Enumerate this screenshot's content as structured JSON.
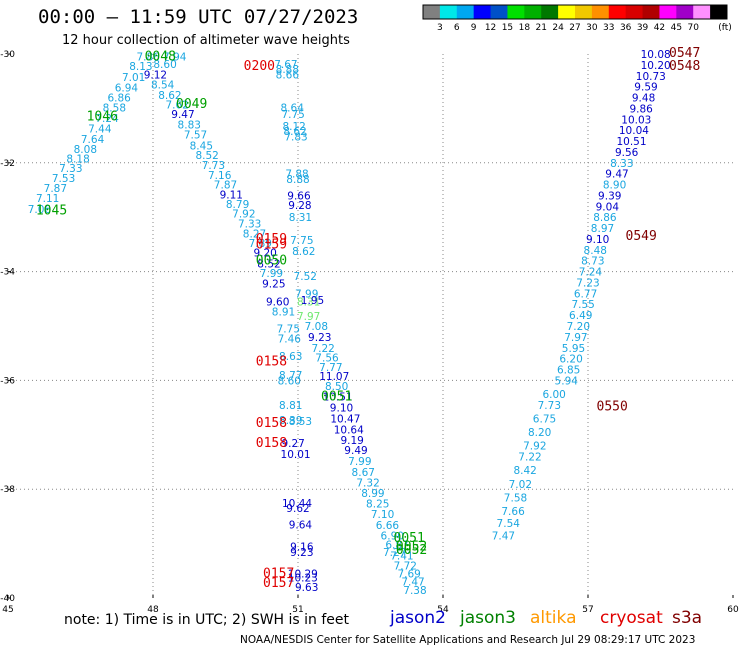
{
  "header": {
    "title": "00:00 – 11:59 UTC 07/27/2023",
    "subtitle": "12 hour collection of altimeter wave heights"
  },
  "colorbar": {
    "ticks": [
      "3",
      "6",
      "9",
      "12",
      "15",
      "18",
      "21",
      "24",
      "27",
      "30",
      "33",
      "36",
      "39",
      "42",
      "45",
      "70"
    ],
    "unit": "(ft)",
    "colors": [
      "#808080",
      "#00e8e8",
      "#00a8f0",
      "#0000ff",
      "#0050c8",
      "#00e000",
      "#00b000",
      "#007800",
      "#ffff00",
      "#f0c800",
      "#ff9000",
      "#ff0000",
      "#d80000",
      "#b00000",
      "#ff00ff",
      "#a000c8",
      "#ff90ff",
      "#000000"
    ]
  },
  "footer": {
    "note": "note:  1) Time is in UTC;  2) SWH is in feet",
    "credit": "NOAA/NESDIS Center for Satellite Applications and Research    Jul 29 08:29:17 UTC 2023"
  },
  "satellites": [
    {
      "name": "jason2",
      "color": "#0000c8"
    },
    {
      "name": "jason3",
      "color": "#008000"
    },
    {
      "name": "altika",
      "color": "#ff9900"
    },
    {
      "name": "cryosat",
      "color": "#e00000"
    },
    {
      "name": "s3a",
      "color": "#800000"
    }
  ],
  "chart_data": {
    "type": "scatter",
    "xlim": [
      45,
      60
    ],
    "ylim": [
      -40,
      -30
    ],
    "xticks": [
      45,
      48,
      51,
      54,
      57,
      60
    ],
    "yticks": [
      -30,
      -32,
      -34,
      -36,
      -38,
      -40
    ],
    "xtick_labels": [
      "45",
      "48",
      "51",
      "54",
      "57",
      "60"
    ],
    "ytick_labels": [
      "-30",
      "-32",
      "-34",
      "-36",
      "-38",
      "-40"
    ],
    "grid": true,
    "grid_style": "dotted",
    "palette": {
      "a": "#1aa6e0",
      "b": "#0000c8",
      "c": "#00a000",
      "d": "#e00000",
      "e": "#800000",
      "f": "#70e870"
    },
    "labels": [
      [
        "7.86",
        47.9,
        -30.05,
        "a"
      ],
      [
        "8.13",
        47.75,
        -30.22,
        "a"
      ],
      [
        "7.01",
        47.6,
        -30.42,
        "a"
      ],
      [
        "6.94",
        47.45,
        -30.62,
        "a"
      ],
      [
        "6.86",
        47.3,
        -30.8,
        "a"
      ],
      [
        "8.58",
        47.2,
        -30.98,
        "a"
      ],
      [
        "7.24",
        47.05,
        -31.18,
        "a"
      ],
      [
        "7.44",
        46.9,
        -31.37,
        "a"
      ],
      [
        "7.64",
        46.75,
        -31.56,
        "a"
      ],
      [
        "8.08",
        46.6,
        -31.75,
        "a"
      ],
      [
        "8.18",
        46.45,
        -31.92,
        "a"
      ],
      [
        "7.33",
        46.3,
        -32.1,
        "a"
      ],
      [
        "7.53",
        46.15,
        -32.28,
        "a"
      ],
      [
        "7.87",
        45.98,
        -32.46,
        "a"
      ],
      [
        "7.11",
        45.82,
        -32.65,
        "a"
      ],
      [
        "7.06",
        45.65,
        -32.85,
        "a"
      ],
      [
        "7.94",
        48.45,
        -30.05,
        "a"
      ],
      [
        "8.60",
        48.25,
        -30.18,
        "a"
      ],
      [
        "9.12",
        48.05,
        -30.38,
        "b"
      ],
      [
        "8.54",
        48.2,
        -30.56,
        "a"
      ],
      [
        "8.62",
        48.35,
        -30.75,
        "a"
      ],
      [
        "7.62",
        48.5,
        -30.93,
        "a"
      ],
      [
        "9.47",
        48.62,
        -31.1,
        "b"
      ],
      [
        "8.83",
        48.75,
        -31.3,
        "a"
      ],
      [
        "7.57",
        48.88,
        -31.48,
        "a"
      ],
      [
        "8.45",
        49.0,
        -31.68,
        "a"
      ],
      [
        "8.52",
        49.12,
        -31.86,
        "a"
      ],
      [
        "7.73",
        49.25,
        -32.04,
        "a"
      ],
      [
        "7.16",
        49.38,
        -32.22,
        "a"
      ],
      [
        "7.87",
        49.5,
        -32.4,
        "a"
      ],
      [
        "9.11",
        49.62,
        -32.58,
        "b"
      ],
      [
        "8.79",
        49.75,
        -32.76,
        "a"
      ],
      [
        "7.92",
        49.88,
        -32.93,
        "a"
      ],
      [
        "7.33",
        50.0,
        -33.12,
        "a"
      ],
      [
        "8.27",
        50.1,
        -33.3,
        "a"
      ],
      [
        "7.89",
        50.22,
        -33.47,
        "a"
      ],
      [
        "9.20",
        50.32,
        -33.65,
        "b"
      ],
      [
        "8.52",
        50.4,
        -33.85,
        "b"
      ],
      [
        "7.99",
        50.45,
        -34.03,
        "a"
      ],
      [
        "9.25",
        50.5,
        -34.22,
        "b"
      ],
      [
        "9.60",
        50.58,
        -34.55,
        "b"
      ],
      [
        "8.91",
        50.7,
        -34.73,
        "a"
      ],
      [
        "7.75",
        50.8,
        -35.05,
        "a"
      ],
      [
        "7.46",
        50.82,
        -35.23,
        "a"
      ],
      [
        "8.63",
        50.85,
        -35.55,
        "a"
      ],
      [
        "8.77",
        50.85,
        -35.9,
        "a"
      ],
      [
        "8.60",
        50.82,
        -36.0,
        "a"
      ],
      [
        "8.81",
        50.85,
        -36.45,
        "a"
      ],
      [
        "8.39",
        50.85,
        -36.73,
        "a"
      ],
      [
        "8.53",
        51.05,
        -36.75,
        "a"
      ],
      [
        "9.27",
        50.9,
        -37.15,
        "b"
      ],
      [
        "10.01",
        50.95,
        -37.35,
        "b"
      ],
      [
        "7.67",
        50.75,
        -30.18,
        "a"
      ],
      [
        "8.88",
        50.78,
        -30.28,
        "a"
      ],
      [
        "8.66",
        50.78,
        -30.38,
        "a"
      ],
      [
        "8.64",
        50.88,
        -30.98,
        "a"
      ],
      [
        "7.75",
        50.9,
        -31.1,
        "a"
      ],
      [
        "8.12",
        50.92,
        -31.32,
        "a"
      ],
      [
        "8.62",
        50.94,
        -31.42,
        "a"
      ],
      [
        "7.83",
        50.96,
        -31.52,
        "a"
      ],
      [
        "7.88",
        50.98,
        -32.2,
        "a"
      ],
      [
        "8.88",
        51.0,
        -32.3,
        "a"
      ],
      [
        "9.66",
        51.02,
        -32.6,
        "b"
      ],
      [
        "9.28",
        51.04,
        -32.78,
        "b"
      ],
      [
        "8.31",
        51.05,
        -33.0,
        "a"
      ],
      [
        "7.75",
        51.08,
        -33.42,
        "a"
      ],
      [
        "8.62",
        51.12,
        -33.62,
        "a"
      ],
      [
        "7.52",
        51.15,
        -34.08,
        "a"
      ],
      [
        "7.99",
        51.18,
        -34.4,
        "a"
      ],
      [
        "8.31",
        51.22,
        -34.55,
        "f"
      ],
      [
        "7.97",
        51.22,
        -34.82,
        "f"
      ],
      [
        "1.95",
        51.3,
        -34.52,
        "b"
      ],
      [
        "7.08",
        51.38,
        -35.0,
        "a"
      ],
      [
        "9.23",
        51.45,
        -35.2,
        "b"
      ],
      [
        "7.22",
        51.52,
        -35.4,
        "a"
      ],
      [
        "7.56",
        51.6,
        -35.58,
        "a"
      ],
      [
        "7.77",
        51.68,
        -35.75,
        "a"
      ],
      [
        "11.07",
        51.75,
        -35.92,
        "b"
      ],
      [
        "8.50",
        51.8,
        -36.1,
        "a"
      ],
      [
        "10.51",
        51.82,
        -36.3,
        "b"
      ],
      [
        "9.10",
        51.9,
        -36.5,
        "b"
      ],
      [
        "10.47",
        51.98,
        -36.7,
        "b"
      ],
      [
        "10.64",
        52.05,
        -36.9,
        "b"
      ],
      [
        "9.19",
        52.12,
        -37.1,
        "b"
      ],
      [
        "9.49",
        52.2,
        -37.28,
        "b"
      ],
      [
        "7.99",
        52.28,
        -37.48,
        "a"
      ],
      [
        "8.67",
        52.35,
        -37.68,
        "a"
      ],
      [
        "7.32",
        52.45,
        -37.88,
        "a"
      ],
      [
        "8.99",
        52.55,
        -38.07,
        "a"
      ],
      [
        "8.25",
        52.65,
        -38.26,
        "a"
      ],
      [
        "7.10",
        52.75,
        -38.46,
        "a"
      ],
      [
        "6.66",
        52.85,
        -38.66,
        "a"
      ],
      [
        "6.90",
        52.95,
        -38.85,
        "a"
      ],
      [
        "6.87",
        53.05,
        -39.02,
        "a"
      ],
      [
        "7.41",
        53.15,
        -39.22,
        "a"
      ],
      [
        "7.72",
        53.22,
        -39.4,
        "a"
      ],
      [
        "7.69",
        53.3,
        -39.55,
        "a"
      ],
      [
        "7.47",
        53.38,
        -39.7,
        "a"
      ],
      [
        "7.38",
        53.42,
        -39.85,
        "a"
      ],
      [
        "7.27",
        53.0,
        -39.15,
        "a"
      ],
      [
        "10.44",
        50.98,
        -38.25,
        "b"
      ],
      [
        "9.62",
        51.0,
        -38.35,
        "b"
      ],
      [
        "9.64",
        51.05,
        -38.65,
        "b"
      ],
      [
        "9.16",
        51.08,
        -39.05,
        "b"
      ],
      [
        "9.23",
        51.08,
        -39.15,
        "b"
      ],
      [
        "10.29",
        51.1,
        -39.55,
        "b"
      ],
      [
        "10.23",
        51.1,
        -39.62,
        "b"
      ],
      [
        "9.63",
        51.18,
        -39.8,
        "b"
      ],
      [
        "10.08",
        58.4,
        -30.0,
        "b"
      ],
      [
        "10.20",
        58.4,
        -30.2,
        "b"
      ],
      [
        "10.73",
        58.3,
        -30.4,
        "b"
      ],
      [
        "9.59",
        58.2,
        -30.6,
        "b"
      ],
      [
        "9.48",
        58.15,
        -30.8,
        "b"
      ],
      [
        "9.86",
        58.1,
        -31.0,
        "b"
      ],
      [
        "10.03",
        58.0,
        -31.2,
        "b"
      ],
      [
        "10.04",
        57.95,
        -31.4,
        "b"
      ],
      [
        "10.51",
        57.9,
        -31.6,
        "b"
      ],
      [
        "9.56",
        57.8,
        -31.8,
        "b"
      ],
      [
        "8.33",
        57.7,
        -32.0,
        "a"
      ],
      [
        "9.47",
        57.6,
        -32.2,
        "b"
      ],
      [
        "8.90",
        57.55,
        -32.4,
        "a"
      ],
      [
        "9.39",
        57.45,
        -32.6,
        "b"
      ],
      [
        "9.04",
        57.4,
        -32.8,
        "b"
      ],
      [
        "8.86",
        57.35,
        -33.0,
        "a"
      ],
      [
        "8.97",
        57.3,
        -33.2,
        "a"
      ],
      [
        "9.10",
        57.2,
        -33.4,
        "b"
      ],
      [
        "8.48",
        57.15,
        -33.6,
        "a"
      ],
      [
        "8.73",
        57.1,
        -33.8,
        "a"
      ],
      [
        "7.24",
        57.05,
        -34.0,
        "a"
      ],
      [
        "7.23",
        57.0,
        -34.2,
        "a"
      ],
      [
        "6.77",
        56.95,
        -34.4,
        "a"
      ],
      [
        "7.55",
        56.9,
        -34.6,
        "a"
      ],
      [
        "6.49",
        56.85,
        -34.8,
        "a"
      ],
      [
        "7.20",
        56.8,
        -35.0,
        "a"
      ],
      [
        "7.97",
        56.75,
        -35.2,
        "a"
      ],
      [
        "5.95",
        56.7,
        -35.4,
        "a"
      ],
      [
        "6.20",
        56.65,
        -35.6,
        "a"
      ],
      [
        "6.85",
        56.6,
        -35.8,
        "a"
      ],
      [
        "5.94",
        56.55,
        -36.0,
        "a"
      ],
      [
        "6.00",
        56.3,
        -36.25,
        "a"
      ],
      [
        "7.73",
        56.2,
        -36.45,
        "a"
      ],
      [
        "6.75",
        56.1,
        -36.7,
        "a"
      ],
      [
        "8.20",
        56.0,
        -36.95,
        "a"
      ],
      [
        "7.92",
        55.9,
        -37.2,
        "a"
      ],
      [
        "7.22",
        55.8,
        -37.4,
        "a"
      ],
      [
        "8.42",
        55.7,
        -37.65,
        "a"
      ],
      [
        "7.02",
        55.6,
        -37.9,
        "a"
      ],
      [
        "7.58",
        55.5,
        -38.15,
        "a"
      ],
      [
        "7.66",
        55.45,
        -38.4,
        "a"
      ],
      [
        "7.54",
        55.35,
        -38.62,
        "a"
      ],
      [
        "7.47",
        55.25,
        -38.85,
        "a"
      ],
      [
        "0048",
        48.15,
        -30.05,
        "c"
      ],
      [
        "1046",
        46.95,
        -31.15,
        "c"
      ],
      [
        "0049",
        48.8,
        -30.92,
        "c"
      ],
      [
        "1045",
        45.9,
        -32.88,
        "c"
      ],
      [
        "0050",
        50.45,
        -33.8,
        "c"
      ],
      [
        "0051",
        51.8,
        -36.3,
        "c"
      ],
      [
        "0051",
        53.3,
        -38.9,
        "c"
      ],
      [
        "0052",
        53.35,
        -39.05,
        "c"
      ],
      [
        "0052",
        53.35,
        -39.12,
        "c"
      ],
      [
        "0200",
        50.2,
        -30.22,
        "d"
      ],
      [
        "0159",
        50.45,
        -33.4,
        "d"
      ],
      [
        "0159",
        50.45,
        -33.5,
        "d"
      ],
      [
        "0158",
        50.45,
        -35.65,
        "d"
      ],
      [
        "0158",
        50.45,
        -36.78,
        "d"
      ],
      [
        "0158",
        50.45,
        -37.15,
        "d"
      ],
      [
        "0157",
        50.6,
        -39.55,
        "d"
      ],
      [
        "0157",
        50.6,
        -39.72,
        "d"
      ],
      [
        "0547",
        59.0,
        -29.98,
        "e"
      ],
      [
        "0548",
        59.0,
        -30.22,
        "e"
      ],
      [
        "0549",
        58.1,
        -33.35,
        "e"
      ],
      [
        "0550",
        57.5,
        -36.48,
        "e"
      ]
    ]
  }
}
